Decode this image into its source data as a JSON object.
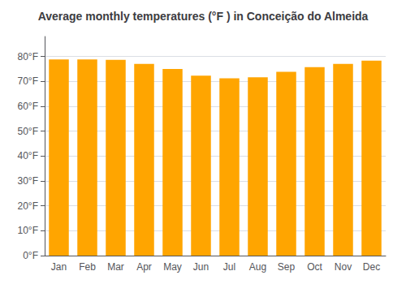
{
  "chart_data": {
    "type": "bar",
    "title": "Average monthly temperatures (°F ) in Conceição do Almeida",
    "categories": [
      "Jan",
      "Feb",
      "Mar",
      "Apr",
      "May",
      "Jun",
      "Jul",
      "Aug",
      "Sep",
      "Oct",
      "Nov",
      "Dec"
    ],
    "values": [
      78.8,
      78.8,
      78.6,
      77.0,
      75.0,
      72.3,
      71.2,
      71.6,
      73.8,
      75.7,
      77.0,
      78.3
    ],
    "color": "#FFA500",
    "ylim": [
      0,
      88
    ],
    "yticks": [
      {
        "value": 0,
        "label": "0°F"
      },
      {
        "value": 10,
        "label": "10°F"
      },
      {
        "value": 20,
        "label": "20°F"
      },
      {
        "value": 30,
        "label": "30°F"
      },
      {
        "value": 40,
        "label": "40°F"
      },
      {
        "value": 50,
        "label": "50°F"
      },
      {
        "value": 60,
        "label": "60°F"
      },
      {
        "value": 70,
        "label": "70°F"
      },
      {
        "value": 80,
        "label": "80°F"
      }
    ],
    "grid": true
  }
}
